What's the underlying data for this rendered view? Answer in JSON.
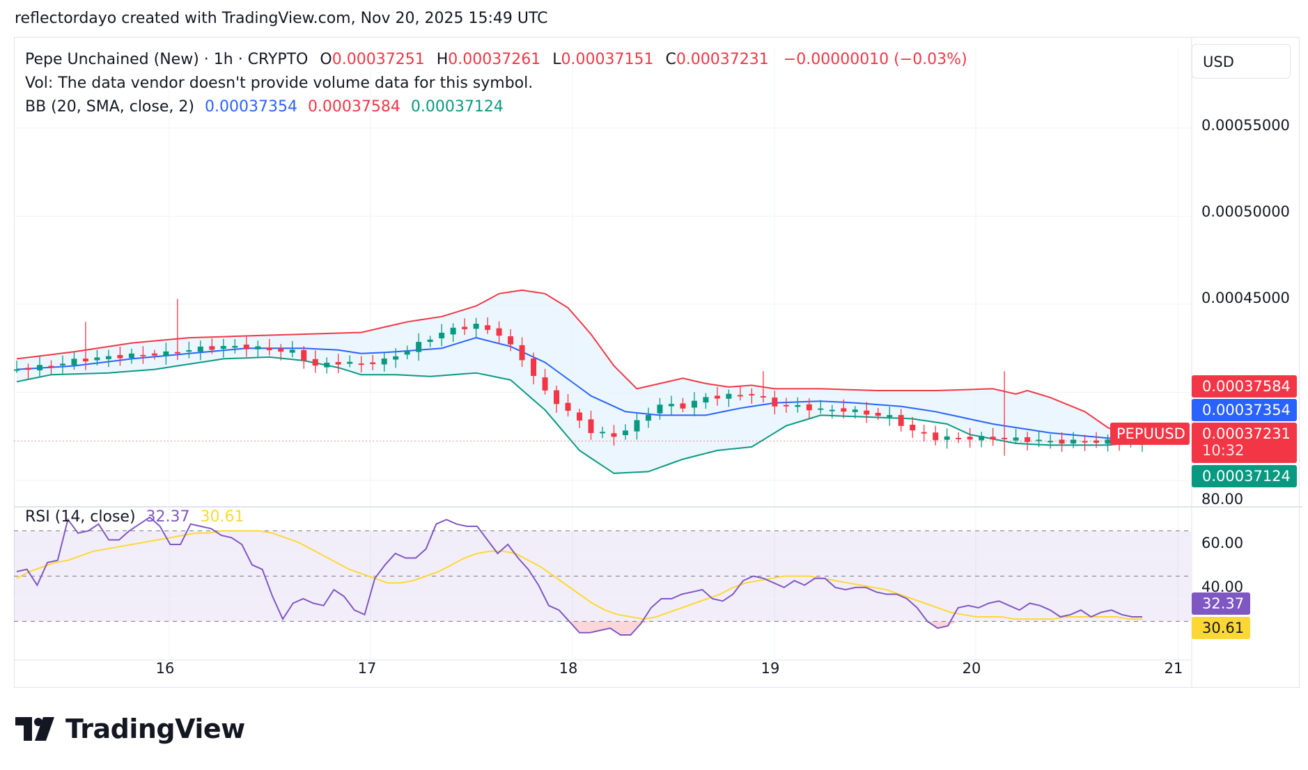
{
  "header": {
    "credit": "reflectordayo created with TradingView.com, Nov 20, 2025 15:49 UTC"
  },
  "legend": {
    "symbol": "Pepe Unchained (New) · 1h · CRYPTO",
    "o_label": "O",
    "o_value": "0.00037251",
    "h_label": "H",
    "h_value": "0.00037261",
    "l_label": "L",
    "l_value": "0.00037151",
    "c_label": "C",
    "c_value": "0.00037231",
    "change": "−0.00000010 (−0.03%)",
    "vol": "Vol: The data vendor doesn't provide volume data for this symbol.",
    "bb_label": "BB (20, SMA, close, 2)",
    "bb_basis": "0.00037354",
    "bb_upper": "0.00037584",
    "bb_lower": "0.00037124",
    "rsi_label": "RSI (14, close)",
    "rsi_value": "32.37",
    "rsi_ma_value": "30.61"
  },
  "currency": "USD",
  "price_ticks": [
    "0.00055000",
    "0.00050000",
    "0.00045000"
  ],
  "rsi_ticks": [
    "80.00",
    "60.00",
    "40.00"
  ],
  "date_ticks": [
    "16",
    "17",
    "18",
    "19",
    "20",
    "21"
  ],
  "tags": {
    "bb_upper": "0.00037584",
    "bb_basis": "0.00037354",
    "symbol": "PEPUUSD",
    "last_price": "0.00037231",
    "countdown": "10:32",
    "bb_lower": "0.00037124",
    "rsi": "32.37",
    "rsi_ma": "30.61"
  },
  "colors": {
    "up": "#089981",
    "down": "#f23645",
    "basis": "#2962ff",
    "upper": "#f23645",
    "lower": "#089981",
    "band_fill": "#e3f2fd",
    "rsi": "#7e57c2",
    "rsi_ma": "#fdd835"
  },
  "brand": "TradingView",
  "chart_data": [
    {
      "type": "candlestick",
      "title": "Pepe Unchained (New) · 1h · CRYPTO",
      "y_axis_ticks": [
        0.00055,
        0.0005,
        0.00045
      ],
      "ylim": [
        0.000372,
        0.000563
      ],
      "x_labels": [
        "16",
        "17",
        "18",
        "19",
        "20",
        "21"
      ],
      "series": [
        {
          "name": "BB upper",
          "anchors": [
            [
              0,
              0.000419
            ],
            [
              5,
              0.000423
            ],
            [
              10,
              0.000428
            ],
            [
              15,
              0.000431
            ],
            [
              20,
              0.000432
            ],
            [
              25,
              0.000433
            ],
            [
              30,
              0.000434
            ],
            [
              32,
              0.000437
            ],
            [
              34,
              0.00044
            ],
            [
              37,
              0.000443
            ],
            [
              40,
              0.000449
            ],
            [
              42,
              0.000456
            ],
            [
              44,
              0.000458
            ],
            [
              46,
              0.000456
            ],
            [
              48,
              0.000448
            ],
            [
              50,
              0.000433
            ],
            [
              52,
              0.000415
            ],
            [
              54,
              0.000402
            ],
            [
              56,
              0.000405
            ],
            [
              58,
              0.000408
            ],
            [
              60,
              0.000405
            ],
            [
              62,
              0.000403
            ],
            [
              64,
              0.000404
            ],
            [
              66,
              0.000402
            ],
            [
              70,
              0.000402
            ],
            [
              75,
              0.000401
            ],
            [
              80,
              0.000401
            ],
            [
              85,
              0.000402
            ],
            [
              87,
              0.000399
            ],
            [
              88,
              0.000401
            ],
            [
              90,
              0.000397
            ],
            [
              93,
              0.000389
            ],
            [
              95,
              0.00038
            ],
            [
              97,
              0.000374
            ],
            [
              98,
              0.000371
            ]
          ]
        },
        {
          "name": "BB basis",
          "anchors": [
            [
              0,
              0.000413
            ],
            [
              5,
              0.000415
            ],
            [
              10,
              0.000419
            ],
            [
              15,
              0.000422
            ],
            [
              20,
              0.000425
            ],
            [
              25,
              0.000425
            ],
            [
              28,
              0.000424
            ],
            [
              30,
              0.000422
            ],
            [
              33,
              0.000423
            ],
            [
              37,
              0.000425
            ],
            [
              40,
              0.000431
            ],
            [
              43,
              0.000426
            ],
            [
              46,
              0.000417
            ],
            [
              50,
              0.000398
            ],
            [
              53,
              0.000389
            ],
            [
              56,
              0.000387
            ],
            [
              60,
              0.000387
            ],
            [
              63,
              0.000391
            ],
            [
              66,
              0.000394
            ],
            [
              70,
              0.000395
            ],
            [
              73,
              0.000394
            ],
            [
              77,
              0.000392
            ],
            [
              80,
              0.000389
            ],
            [
              85,
              0.000382
            ],
            [
              90,
              0.000377
            ],
            [
              95,
              0.000374
            ],
            [
              98,
              0.000373
            ]
          ]
        },
        {
          "name": "BB lower",
          "anchors": [
            [
              0,
              0.000406
            ],
            [
              3,
              0.00041
            ],
            [
              8,
              0.000411
            ],
            [
              12,
              0.000413
            ],
            [
              15,
              0.000416
            ],
            [
              18,
              0.000419
            ],
            [
              22,
              0.00042
            ],
            [
              25,
              0.000418
            ],
            [
              28,
              0.000414
            ],
            [
              30,
              0.00041
            ],
            [
              33,
              0.00041
            ],
            [
              36,
              0.000409
            ],
            [
              40,
              0.000411
            ],
            [
              43,
              0.000407
            ],
            [
              46,
              0.00039
            ],
            [
              49,
              0.000367
            ],
            [
              52,
              0.000354
            ],
            [
              55,
              0.000355
            ],
            [
              58,
              0.000362
            ],
            [
              61,
              0.000367
            ],
            [
              64,
              0.000369
            ],
            [
              67,
              0.000381
            ],
            [
              70,
              0.000387
            ],
            [
              74,
              0.000386
            ],
            [
              78,
              0.000385
            ],
            [
              81,
              0.000382
            ],
            [
              83,
              0.000376
            ],
            [
              87,
              0.000371
            ],
            [
              90,
              0.00037
            ],
            [
              95,
              0.00037
            ],
            [
              98,
              0.000372
            ]
          ]
        },
        {
          "name": "Price",
          "anchors": [
            [
              0,
              0.000413
            ],
            [
              3,
              0.000415
            ],
            [
              5,
              0.000418
            ],
            [
              8,
              0.00042
            ],
            [
              10,
              0.000421
            ],
            [
              13,
              0.000422
            ],
            [
              16,
              0.000425
            ],
            [
              19,
              0.000426
            ],
            [
              21,
              0.000425
            ],
            [
              24,
              0.000423
            ],
            [
              26,
              0.000415
            ],
            [
              28,
              0.000417
            ],
            [
              30,
              0.000416
            ],
            [
              32,
              0.000418
            ],
            [
              34,
              0.000424
            ],
            [
              36,
              0.000431
            ],
            [
              38,
              0.000436
            ],
            [
              40,
              0.000438
            ],
            [
              42,
              0.000433
            ],
            [
              44,
              0.000419
            ],
            [
              46,
              0.0004
            ],
            [
              48,
              0.000389
            ],
            [
              50,
              0.000378
            ],
            [
              52,
              0.000375
            ],
            [
              54,
              0.000383
            ],
            [
              56,
              0.000393
            ],
            [
              58,
              0.000392
            ],
            [
              60,
              0.000397
            ],
            [
              62,
              0.000398
            ],
            [
              64,
              0.000399
            ],
            [
              66,
              0.000393
            ],
            [
              68,
              0.000392
            ],
            [
              70,
              0.00039
            ],
            [
              72,
              0.00039
            ],
            [
              74,
              0.000388
            ],
            [
              76,
              0.000386
            ],
            [
              78,
              0.000378
            ],
            [
              80,
              0.000374
            ],
            [
              82,
              0.000374
            ],
            [
              85,
              0.000374
            ],
            [
              88,
              0.000373
            ],
            [
              90,
              0.000372
            ],
            [
              93,
              0.000372
            ],
            [
              96,
              0.000372
            ],
            [
              98,
              0.000372
            ]
          ]
        }
      ],
      "last_close": 0.00037231
    },
    {
      "type": "line",
      "title": "RSI (14, close)",
      "y_axis_ticks": [
        80,
        60,
        40
      ],
      "ylim": [
        10,
        85
      ],
      "bands": [
        70,
        50,
        30
      ],
      "series": [
        {
          "name": "RSI",
          "values": [
            52,
            53,
            46,
            56,
            57,
            75,
            69,
            70,
            73,
            66,
            66,
            70,
            73,
            76,
            72,
            64,
            64,
            73,
            72,
            71,
            68,
            67,
            64,
            55,
            53,
            41,
            31,
            38,
            40,
            38,
            37,
            44,
            41,
            35,
            33,
            49,
            55,
            60,
            58,
            58,
            62,
            73,
            75,
            73,
            72,
            72,
            66,
            60,
            64,
            58,
            53,
            46,
            37,
            35,
            30,
            25,
            25,
            26,
            27,
            24,
            24,
            29,
            36,
            40,
            40,
            42,
            43,
            44,
            40,
            39,
            42,
            48,
            50,
            49,
            47,
            45,
            48,
            46,
            49,
            49,
            45,
            44,
            45,
            45,
            43,
            42,
            42,
            40,
            36,
            30,
            27,
            28,
            36,
            37,
            36,
            38,
            39,
            37,
            35,
            38,
            37,
            35,
            32,
            33,
            35,
            32,
            34,
            35,
            33,
            32,
            32
          ],
          "yl": 0
        },
        {
          "name": "RSI-based MA",
          "values": [
            49,
            52,
            54,
            56,
            57,
            59,
            61,
            62,
            63,
            64,
            65,
            66,
            67,
            68,
            69,
            69,
            70,
            70,
            70,
            70,
            69,
            67,
            65,
            62,
            59,
            56,
            53,
            51,
            49,
            47,
            47,
            48,
            50,
            52,
            55,
            58,
            60,
            61,
            61,
            60,
            57,
            54,
            50,
            46,
            42,
            38,
            35,
            33,
            32,
            31,
            32,
            34,
            36,
            38,
            40,
            42,
            45,
            47,
            48,
            49,
            50,
            50,
            50,
            49,
            48,
            47,
            46,
            45,
            44,
            42,
            40,
            38,
            36,
            34,
            33,
            32,
            32,
            32,
            31,
            31,
            31,
            31,
            32,
            32,
            32,
            32,
            32,
            31,
            31
          ]
        }
      ]
    }
  ]
}
